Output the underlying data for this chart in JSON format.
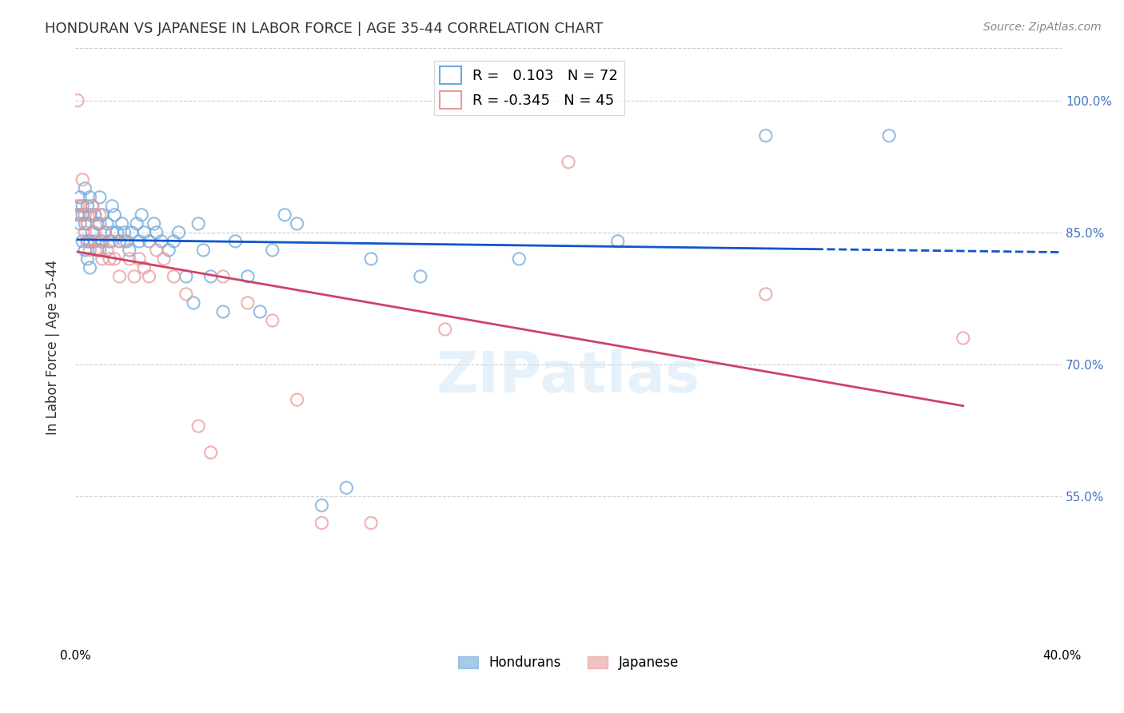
{
  "title": "HONDURAN VS JAPANESE IN LABOR FORCE | AGE 35-44 CORRELATION CHART",
  "source": "Source: ZipAtlas.com",
  "ylabel": "In Labor Force | Age 35-44",
  "watermark": "ZIPatlas",
  "xlim": [
    0.0,
    0.4
  ],
  "ylim": [
    0.38,
    1.06
  ],
  "grid_color": "#cccccc",
  "blue_color": "#6fa8dc",
  "pink_color": "#ea9999",
  "blue_line_color": "#1155cc",
  "pink_line_color": "#cc4466",
  "R_blue": 0.103,
  "N_blue": 72,
  "R_pink": -0.345,
  "N_pink": 45,
  "honduran_x": [
    0.001,
    0.002,
    0.002,
    0.003,
    0.003,
    0.003,
    0.004,
    0.004,
    0.004,
    0.005,
    0.005,
    0.005,
    0.005,
    0.006,
    0.006,
    0.006,
    0.006,
    0.007,
    0.007,
    0.008,
    0.008,
    0.009,
    0.009,
    0.01,
    0.01,
    0.01,
    0.011,
    0.011,
    0.012,
    0.013,
    0.014,
    0.015,
    0.015,
    0.016,
    0.017,
    0.018,
    0.019,
    0.02,
    0.021,
    0.022,
    0.023,
    0.025,
    0.026,
    0.027,
    0.028,
    0.03,
    0.032,
    0.033,
    0.035,
    0.038,
    0.04,
    0.042,
    0.045,
    0.048,
    0.05,
    0.052,
    0.055,
    0.06,
    0.065,
    0.07,
    0.075,
    0.08,
    0.085,
    0.09,
    0.1,
    0.11,
    0.12,
    0.14,
    0.18,
    0.22,
    0.28,
    0.33
  ],
  "honduran_y": [
    0.87,
    0.89,
    0.86,
    0.88,
    0.87,
    0.84,
    0.9,
    0.86,
    0.83,
    0.88,
    0.86,
    0.84,
    0.82,
    0.89,
    0.87,
    0.84,
    0.81,
    0.88,
    0.85,
    0.87,
    0.84,
    0.86,
    0.83,
    0.89,
    0.86,
    0.83,
    0.87,
    0.84,
    0.85,
    0.86,
    0.84,
    0.88,
    0.85,
    0.87,
    0.85,
    0.84,
    0.86,
    0.85,
    0.84,
    0.83,
    0.85,
    0.86,
    0.84,
    0.87,
    0.85,
    0.84,
    0.86,
    0.85,
    0.84,
    0.83,
    0.84,
    0.85,
    0.8,
    0.77,
    0.86,
    0.83,
    0.8,
    0.76,
    0.84,
    0.8,
    0.76,
    0.83,
    0.87,
    0.86,
    0.54,
    0.56,
    0.82,
    0.8,
    0.82,
    0.84,
    0.96,
    0.96
  ],
  "japanese_x": [
    0.001,
    0.001,
    0.002,
    0.002,
    0.003,
    0.004,
    0.004,
    0.005,
    0.005,
    0.006,
    0.007,
    0.008,
    0.008,
    0.009,
    0.01,
    0.01,
    0.011,
    0.012,
    0.013,
    0.014,
    0.015,
    0.016,
    0.018,
    0.02,
    0.022,
    0.024,
    0.026,
    0.028,
    0.03,
    0.033,
    0.036,
    0.04,
    0.045,
    0.05,
    0.055,
    0.06,
    0.07,
    0.08,
    0.09,
    0.1,
    0.12,
    0.15,
    0.2,
    0.28,
    0.36
  ],
  "japanese_y": [
    0.88,
    1.0,
    0.88,
    0.87,
    0.91,
    0.87,
    0.85,
    0.86,
    0.84,
    0.83,
    0.88,
    0.87,
    0.85,
    0.83,
    0.87,
    0.84,
    0.82,
    0.85,
    0.83,
    0.82,
    0.84,
    0.82,
    0.8,
    0.84,
    0.82,
    0.8,
    0.82,
    0.81,
    0.8,
    0.83,
    0.82,
    0.8,
    0.78,
    0.63,
    0.6,
    0.8,
    0.77,
    0.75,
    0.66,
    0.52,
    0.52,
    0.74,
    0.93,
    0.78,
    0.73
  ],
  "background_color": "#ffffff",
  "title_color": "#333333",
  "axis_label_color": "#333333",
  "right_axis_color": "#4472c4"
}
